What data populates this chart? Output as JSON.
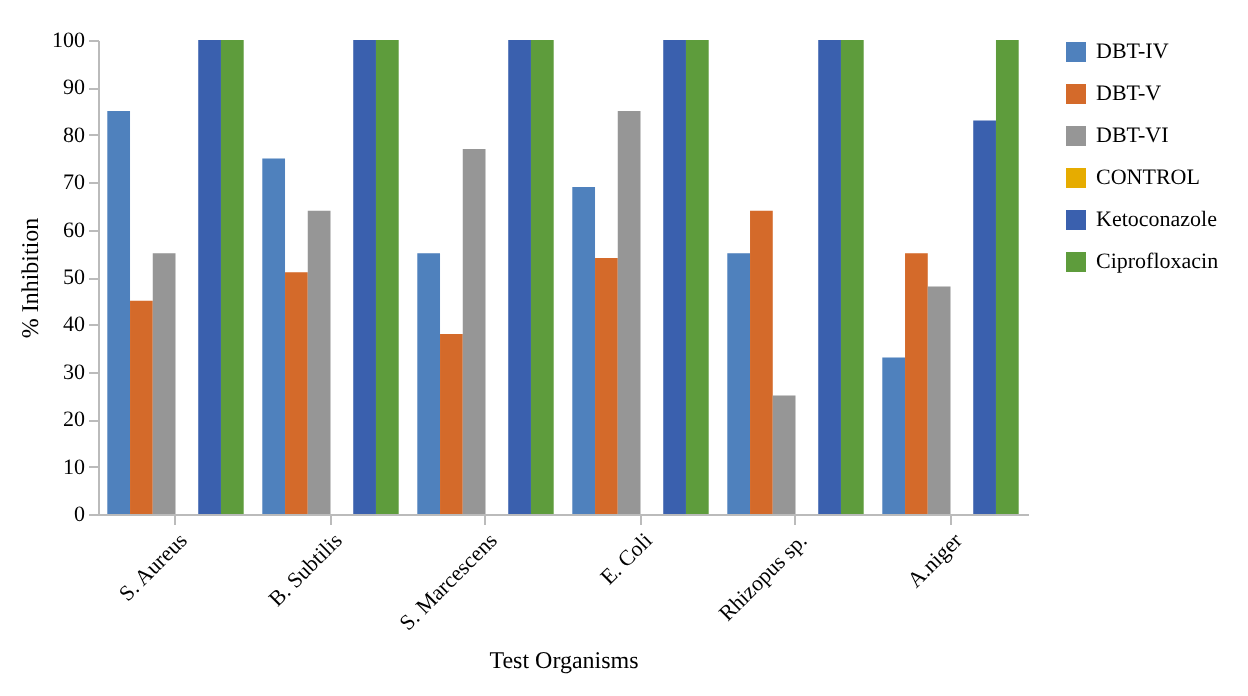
{
  "chart_data": {
    "type": "bar",
    "xlabel": "Test Organisms",
    "ylabel": "% Inhibition",
    "categories": [
      "S. Aureus",
      "B. Subtilis",
      "S. Marcescens",
      "E. Coli",
      "Rhizopus sp.",
      "A.niger"
    ],
    "series": [
      {
        "name": "DBT-IV",
        "color": "#4f81bd",
        "values": [
          85,
          75,
          55,
          69,
          55,
          33
        ]
      },
      {
        "name": "DBT-V",
        "color": "#d46a2a",
        "values": [
          45,
          51,
          38,
          54,
          64,
          55
        ]
      },
      {
        "name": "DBT-VI",
        "color": "#969696",
        "values": [
          55,
          64,
          77,
          85,
          25,
          48
        ]
      },
      {
        "name": "CONTROL",
        "color": "#e6ac00",
        "values": [
          0,
          0,
          0,
          0,
          0,
          0
        ]
      },
      {
        "name": "Ketoconazole",
        "color": "#3a60ae",
        "values": [
          100,
          100,
          100,
          100,
          100,
          83
        ]
      },
      {
        "name": "Ciprofloxacin",
        "color": "#5e9c3c",
        "values": [
          100,
          100,
          100,
          100,
          100,
          100
        ]
      }
    ],
    "ylim": [
      0,
      100
    ],
    "yticks": [
      0,
      10,
      20,
      30,
      40,
      50,
      60,
      70,
      80,
      90,
      100
    ],
    "grid": false,
    "legend": "right"
  }
}
